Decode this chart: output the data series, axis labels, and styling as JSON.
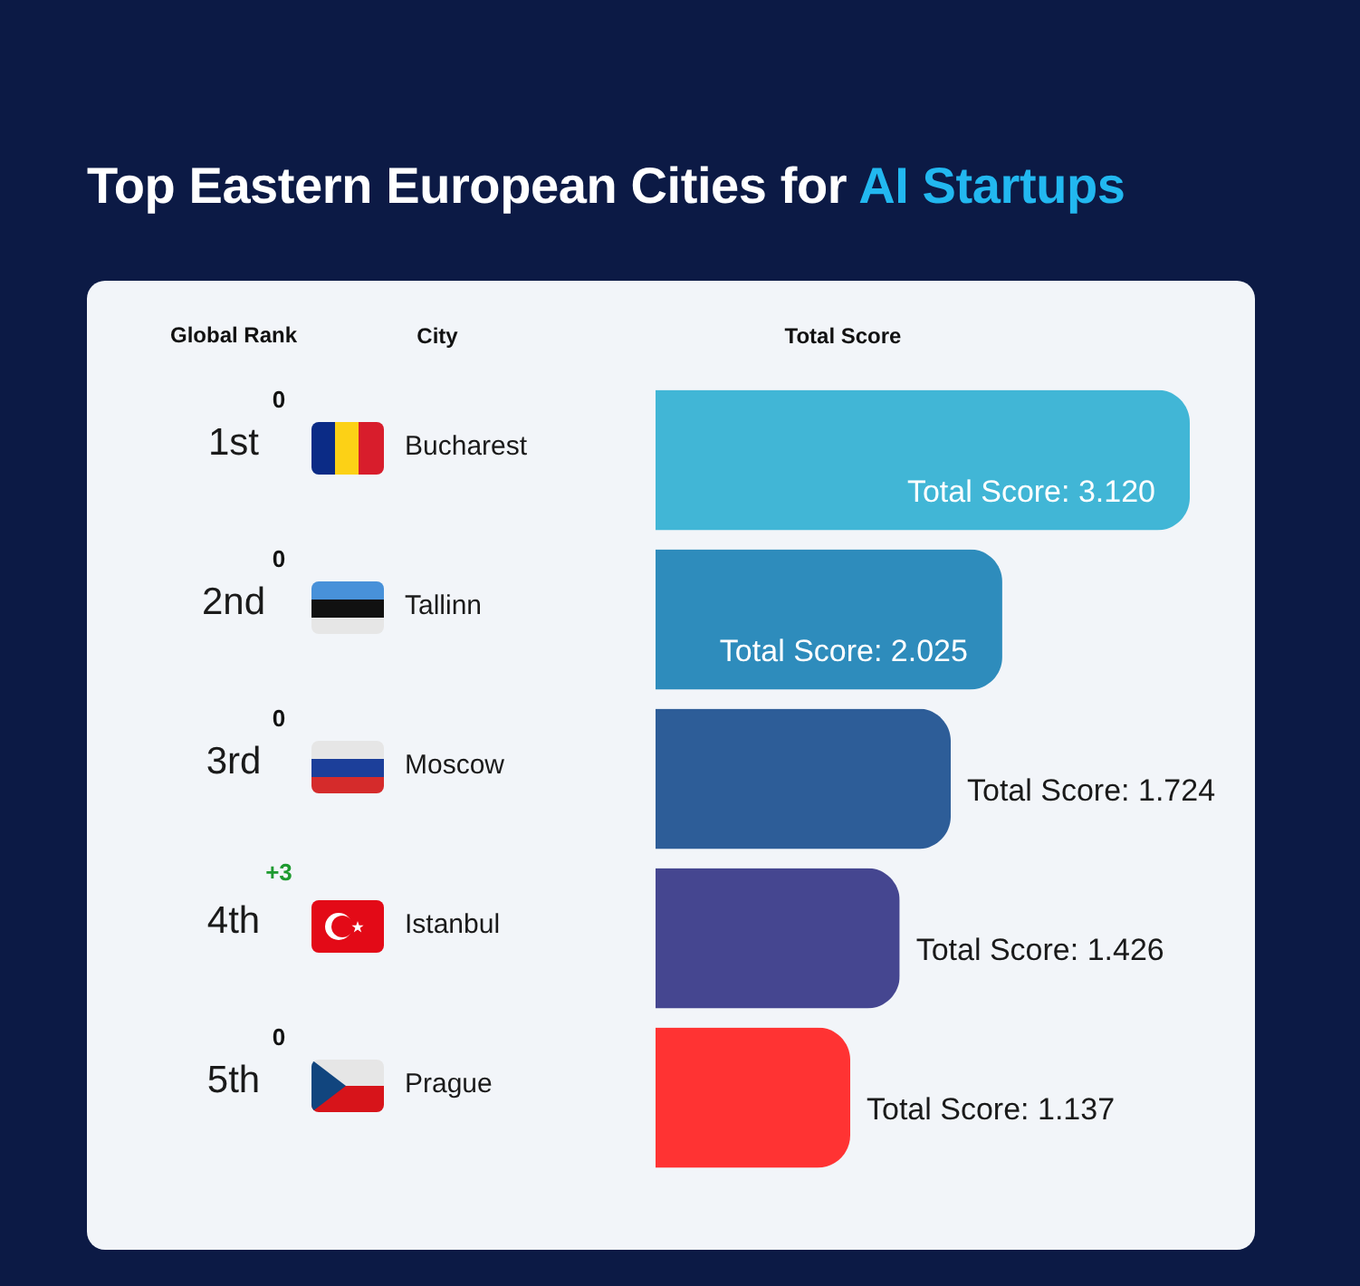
{
  "chart_data": {
    "type": "bar",
    "orientation": "horizontal",
    "title": "Top Eastern European Cities for AI Startups",
    "xlabel": "Total Score",
    "ylabel": "City",
    "tick_labels": "y",
    "categories": [
      "Bucharest",
      "Tallinn",
      "Moscow",
      "Istanbul",
      "Prague"
    ],
    "values": [
      3.12,
      2.025,
      1.724,
      1.426,
      1.137
    ],
    "colors": [
      "#41b6d6",
      "#2e8cbc",
      "#2d5d98",
      "#454690",
      "#ff3333"
    ],
    "value_labels": [
      "Total Score: 3.120",
      "Total Score: 2.025",
      "Total Score: 1.724",
      "Total Score: 1.426",
      "Total Score: 1.137"
    ],
    "annotations": [
      "Global Rank",
      "1st",
      "0",
      "2nd",
      "0",
      "3rd",
      "0",
      "4th",
      "+3",
      "5th",
      "0"
    ]
  }
}
